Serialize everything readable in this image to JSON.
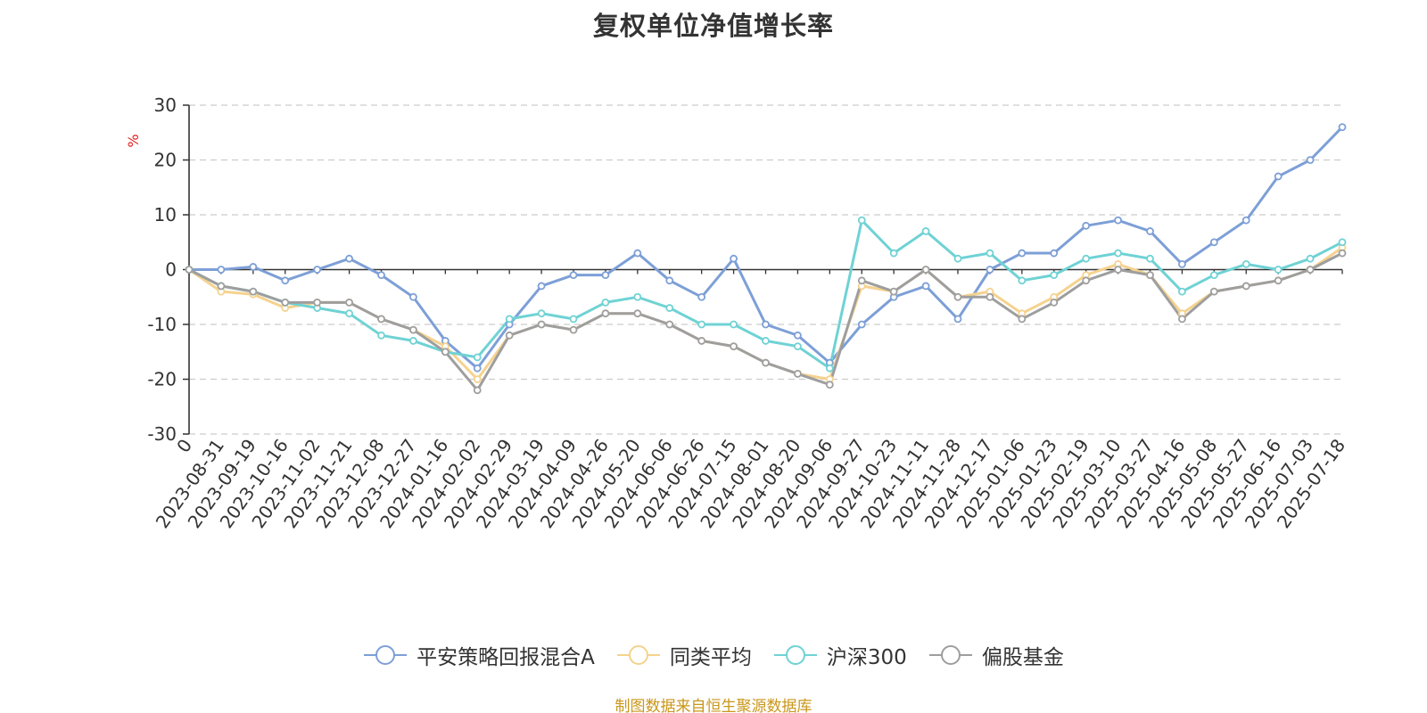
{
  "chart_data": {
    "type": "line",
    "title": "复权单位净值增长率",
    "ylabel": "%",
    "ylim": [
      -30,
      30
    ],
    "yticks": [
      -30,
      -20,
      -10,
      0,
      10,
      20,
      30
    ],
    "grid": true,
    "legend_position": "bottom",
    "x": [
      "0",
      "2023-08-31",
      "2023-09-19",
      "2023-10-16",
      "2023-11-02",
      "2023-11-21",
      "2023-12-08",
      "2023-12-27",
      "2024-01-16",
      "2024-02-02",
      "2024-02-29",
      "2024-03-19",
      "2024-04-09",
      "2024-04-26",
      "2024-05-20",
      "2024-06-06",
      "2024-06-26",
      "2024-07-15",
      "2024-08-01",
      "2024-08-20",
      "2024-09-06",
      "2024-09-27",
      "2024-10-23",
      "2024-11-11",
      "2024-11-28",
      "2024-12-17",
      "2025-01-06",
      "2025-01-23",
      "2025-02-19",
      "2025-03-10",
      "2025-03-27",
      "2025-04-16",
      "2025-05-08",
      "2025-05-27",
      "2025-06-16",
      "2025-07-03",
      "2025-07-18"
    ],
    "series": [
      {
        "name": "平安策略回报混合A",
        "color": "#7d9fd7",
        "values": [
          0,
          0,
          0.5,
          -2,
          0,
          2,
          -1,
          -5,
          -13,
          -18,
          -10,
          -3,
          -1,
          -1,
          3,
          -2,
          -5,
          2,
          -10,
          -12,
          -17,
          -10,
          -5,
          -3,
          -9,
          0,
          3,
          3,
          8,
          9,
          7,
          1,
          5,
          9,
          17,
          20,
          26
        ]
      },
      {
        "name": "同类平均",
        "color": "#f5d28e",
        "values": [
          0,
          -4,
          -4.5,
          -7,
          -6,
          -6,
          -9,
          -11,
          -14,
          -20,
          -12,
          -10,
          -11,
          -8,
          -8,
          -10,
          -13,
          -14,
          -17,
          -19,
          -20,
          -3,
          -4,
          0,
          -5,
          -4,
          -8,
          -5,
          -1,
          1,
          -1,
          -8,
          -4,
          -3,
          -2,
          0,
          4
        ]
      },
      {
        "name": "沪深300",
        "color": "#6fd2d4",
        "values": [
          0,
          -3,
          -4,
          -6,
          -7,
          -8,
          -12,
          -13,
          -15,
          -16,
          -9,
          -8,
          -9,
          -6,
          -5,
          -7,
          -10,
          -10,
          -13,
          -14,
          -18,
          9,
          3,
          7,
          2,
          3,
          -2,
          -1,
          2,
          3,
          2,
          -4,
          -1,
          1,
          0,
          2,
          5
        ]
      },
      {
        "name": "偏股基金",
        "color": "#9e9e9e",
        "values": [
          0,
          -3,
          -4,
          -6,
          -6,
          -6,
          -9,
          -11,
          -15,
          -22,
          -12,
          -10,
          -11,
          -8,
          -8,
          -10,
          -13,
          -14,
          -17,
          -19,
          -21,
          -2,
          -4,
          0,
          -5,
          -5,
          -9,
          -6,
          -2,
          0,
          -1,
          -9,
          -4,
          -3,
          -2,
          0,
          3
        ]
      }
    ]
  },
  "source_note": {
    "text": "制图数据来自恒生聚源数据库",
    "color": "#c9961a"
  },
  "colors": {
    "axis": "#333333",
    "grid": "#cccccc",
    "unit": "#e02020"
  }
}
